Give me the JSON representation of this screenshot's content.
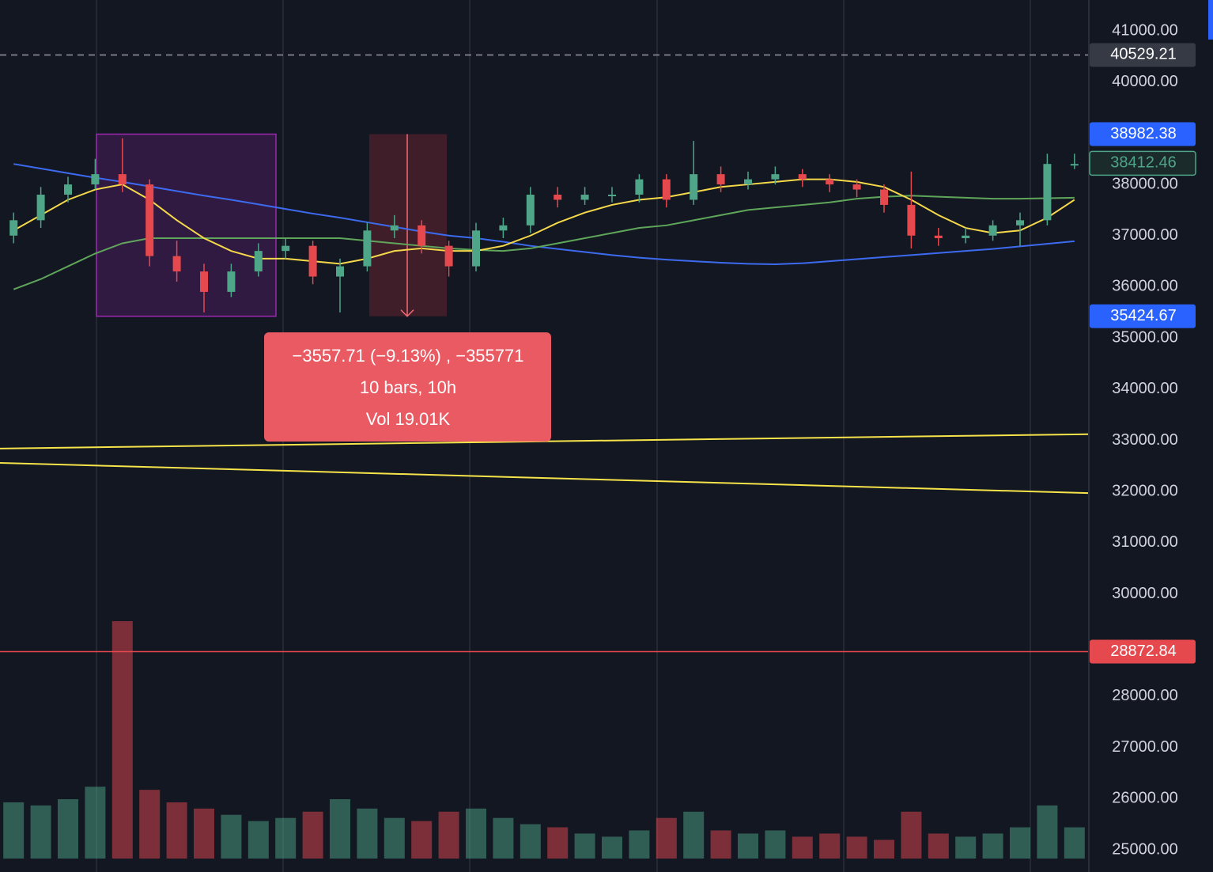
{
  "chart_data": {
    "type": "candlestick",
    "ylim": [
      24567,
      41603
    ],
    "yticks": [
      {
        "value": 41000,
        "label": "41000.00"
      },
      {
        "value": 40000,
        "label": "40000.00"
      },
      {
        "value": 38000,
        "label": "38000.00"
      },
      {
        "value": 37000,
        "label": "37000.00"
      },
      {
        "value": 36000,
        "label": "36000.00"
      },
      {
        "value": 35000,
        "label": "35000.00"
      },
      {
        "value": 34000,
        "label": "34000.00"
      },
      {
        "value": 33000,
        "label": "33000.00"
      },
      {
        "value": 32000,
        "label": "32000.00"
      },
      {
        "value": 31000,
        "label": "31000.00"
      },
      {
        "value": 30000,
        "label": "30000.00"
      },
      {
        "value": 28000,
        "label": "28000.00"
      },
      {
        "value": 27000,
        "label": "27000.00"
      },
      {
        "value": 26000,
        "label": "26000.00"
      },
      {
        "value": 25000,
        "label": "25000.00"
      }
    ],
    "grid": true,
    "up_color": "#4ea587",
    "down_color": "#e5484d",
    "open": [
      37000,
      37300,
      37800,
      38000,
      38200,
      38000,
      36600,
      36300,
      35900,
      36300,
      36700,
      36800,
      36200,
      36400,
      37100,
      37200,
      36800,
      36400,
      37100,
      37200,
      37800,
      37700,
      37800,
      37800,
      38100,
      37700,
      38200,
      38000,
      38100,
      38200,
      38100,
      38000,
      37900,
      37600,
      37000,
      36950,
      37000,
      37200,
      37300,
      38400
    ],
    "high": [
      37450,
      37950,
      38150,
      38500,
      38900,
      38100,
      36900,
      36450,
      36450,
      36850,
      36950,
      36900,
      36550,
      37250,
      37400,
      37300,
      36900,
      37250,
      37350,
      37950,
      37950,
      37950,
      37950,
      38200,
      38200,
      38850,
      38350,
      38250,
      38350,
      38300,
      38200,
      38100,
      38000,
      38250,
      37150,
      37150,
      37300,
      37450,
      38600,
      38600
    ],
    "low": [
      36850,
      37150,
      37650,
      37900,
      37850,
      36400,
      36100,
      35500,
      35800,
      36200,
      36550,
      36050,
      35500,
      36300,
      36950,
      36650,
      36200,
      36300,
      36950,
      37050,
      37550,
      37600,
      37650,
      37650,
      37550,
      37600,
      37850,
      37900,
      38000,
      37950,
      37850,
      37750,
      37450,
      36750,
      36800,
      36850,
      36900,
      36800,
      37200,
      38300
    ],
    "close": [
      37300,
      37800,
      38000,
      38200,
      38000,
      36600,
      36300,
      35900,
      36300,
      36700,
      36800,
      36200,
      36400,
      37100,
      37200,
      36800,
      36400,
      37100,
      37200,
      37800,
      37700,
      37800,
      37800,
      38100,
      37700,
      38200,
      38000,
      38100,
      38200,
      38100,
      38000,
      37900,
      37600,
      37000,
      36950,
      37000,
      37200,
      37300,
      38400,
      38400
    ],
    "volume": [
      1.8,
      1.7,
      1.9,
      2.3,
      7.6,
      2.2,
      1.8,
      1.6,
      1.4,
      1.2,
      1.3,
      1.5,
      1.9,
      1.6,
      1.3,
      1.2,
      1.5,
      1.6,
      1.3,
      1.1,
      1.0,
      0.8,
      0.7,
      0.9,
      1.3,
      1.5,
      0.9,
      0.8,
      0.9,
      0.7,
      0.8,
      0.7,
      0.6,
      1.5,
      0.8,
      0.7,
      0.8,
      1.0,
      1.7,
      1.0
    ],
    "lines": [
      {
        "color": "#3d6bf0",
        "values": [
          38400,
          38310,
          38220,
          38130,
          38050,
          37960,
          37870,
          37780,
          37700,
          37610,
          37520,
          37430,
          37350,
          37260,
          37170,
          37080,
          37000,
          36950,
          36880,
          36800,
          36740,
          36680,
          36620,
          36570,
          36530,
          36500,
          36470,
          36450,
          36440,
          36460,
          36500,
          36540,
          36580,
          36620,
          36660,
          36700,
          36740,
          36790,
          36840,
          36890
        ]
      },
      {
        "color": "#5fa65a",
        "values": [
          35950,
          36150,
          36400,
          36650,
          36850,
          36950,
          36950,
          36950,
          36950,
          36950,
          36950,
          36950,
          36950,
          36900,
          36850,
          36800,
          36750,
          36720,
          36700,
          36750,
          36850,
          36950,
          37050,
          37150,
          37200,
          37300,
          37400,
          37500,
          37550,
          37600,
          37650,
          37720,
          37760,
          37780,
          37760,
          37740,
          37720,
          37720,
          37730,
          37740
        ]
      },
      {
        "color": "#f5d94a",
        "values": [
          37100,
          37400,
          37700,
          37900,
          38000,
          37700,
          37300,
          36950,
          36700,
          36550,
          36550,
          36500,
          36450,
          36550,
          36700,
          36750,
          36700,
          36700,
          36800,
          37000,
          37250,
          37450,
          37600,
          37700,
          37750,
          37850,
          37950,
          38000,
          38050,
          38100,
          38100,
          38050,
          37950,
          37700,
          37400,
          37150,
          37050,
          37100,
          37350,
          37700
        ]
      }
    ],
    "trendlines": [
      {
        "color": "#f7e34a",
        "start": 32840,
        "end": 33120
      },
      {
        "color": "#f7e34a",
        "start": 32560,
        "end": 31970
      }
    ],
    "price_tags": [
      {
        "value": 40529.21,
        "color": "#363a45",
        "line": "dashed"
      },
      {
        "value": 38982.38,
        "color": "#2962ff",
        "line": "none"
      },
      {
        "value": 38412.46,
        "color": "#1b2a2a",
        "line": "none"
      },
      {
        "value": 35424.67,
        "color": "#2962ff",
        "line": "none"
      },
      {
        "value": 28872.84,
        "color": "#e5484d",
        "line": "solid"
      }
    ],
    "measure": {
      "lines": [
        "−3557.71 (−9.13%) , −355771",
        "10 bars, 10h",
        "Vol 19.01K"
      ]
    }
  }
}
